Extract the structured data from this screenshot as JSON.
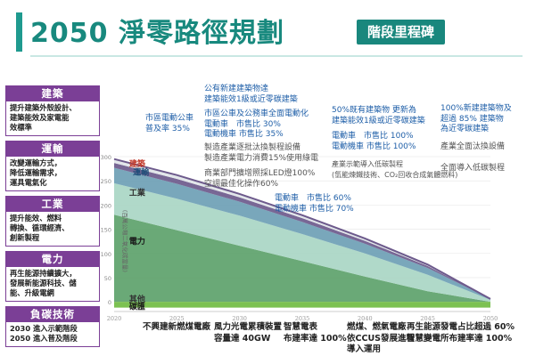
{
  "title": "2050 淨零路徑規劃",
  "badge": "階段里程碑",
  "sidebar": [
    {
      "head": "建築",
      "color": "#7b3f96",
      "body": "提升建築外殼設計、\n建築能效及家電能\n效標準"
    },
    {
      "head": "運輸",
      "color": "#7b3f96",
      "body": "改變運輸方式，\n降低運輸需求，\n運具電氣化"
    },
    {
      "head": "工業",
      "color": "#7b3f96",
      "body": "提升能效、燃料\n轉換、循環經濟、\n創新製程"
    },
    {
      "head": "電力",
      "color": "#7b3f96",
      "body": "再生能源持續擴大，\n發展新能源科技、儲\n能、升級電網"
    },
    {
      "head": "負碳技術",
      "color": "#7b3f96",
      "body": "2030 進入示範階段\n2050 進入普及階段"
    }
  ],
  "annotations": {
    "a1": "市區電動公車\n普及率 35%",
    "a2": "公有新建建築物達\n建築能效1級或近零碳建築",
    "a3": "市區公車及公務車全面電動化\n電動車　市售比 30%\n電動機車 市售比 35%",
    "a4": "製造產業逐批汰換製程設備\n製造產業電力消費15%使用綠電",
    "a5": "商業部門擴增照採LED燈100%\n空調最佳化操作60%",
    "a6": "電動車　市售比 60%\n電動機車 市售比 70%",
    "a7": "50%既有建築物 更新為\n建築能效1級或近零碳建築",
    "a8": "電動車　市售比 100%\n電動機車 市售比 100%",
    "a9": "產業示範導入低碳製程\n(氫能煉鐵技術、CO₂回收合成氣體燃料)",
    "a10": "100%新建建築物及\n超過 85% 建築物\n為近零碳建築",
    "a11": "產業全面汰換設備",
    "a12": "全面導入低碳製程"
  },
  "bottom": {
    "b1": "不興建新燃煤電廠",
    "b2": "風力光電累積裝置\n容量達 40GW",
    "b3": "智慧電表\n布建率達 100%",
    "b4": "燃煤、燃氣電廠\n依CCUS發展進程\n導入運用",
    "b5": "再生能源發電占比超過 60%\n智慧變電所布建率達 100%"
  },
  "chart_data": {
    "type": "area",
    "x": [
      2020,
      2025,
      2030,
      2035,
      2040,
      2045,
      2050
    ],
    "xlim": [
      2020,
      2050
    ],
    "ylim": [
      -20,
      300
    ],
    "yticks": [
      0,
      50,
      100,
      150,
      200,
      250,
      300
    ],
    "ylabel": "(百萬公噸二氧化碳當量)",
    "series": [
      {
        "name": "電力",
        "color": "#5da26b",
        "values": [
          180,
          148,
          116,
          84,
          52,
          22,
          0
        ]
      },
      {
        "name": "工業",
        "color": "#a9d6c4",
        "values": [
          65,
          65,
          62,
          56,
          48,
          34,
          4
        ]
      },
      {
        "name": "運輸",
        "color": "#6e9fb5",
        "values": [
          32,
          31,
          29,
          25,
          20,
          14,
          2
        ]
      },
      {
        "name": "建築",
        "color": "#6d5a8c",
        "values": [
          10,
          10,
          9,
          8,
          6,
          4,
          0
        ]
      },
      {
        "name": "其他",
        "color": "#e0e4e8",
        "values": [
          8,
          8,
          7,
          6,
          5,
          3,
          0
        ]
      },
      {
        "name": "碳匯",
        "color": "#7cc152",
        "values": [
          -12,
          -12,
          -12,
          -12,
          -12,
          -12,
          -12
        ]
      }
    ],
    "labels": {
      "buildings": "建築",
      "transport": "運輸",
      "industry": "工業",
      "power": "電力",
      "other": "其他",
      "sink": "碳匯"
    },
    "tick_labels": {
      "y0": "0",
      "y50": "50",
      "y100": "100",
      "y150": "150",
      "y200": "200",
      "y250": "250",
      "y300": "300"
    },
    "xtick_labels": [
      "2020",
      "2025",
      "2030",
      "2035",
      "2040",
      "2045",
      "2050"
    ]
  }
}
